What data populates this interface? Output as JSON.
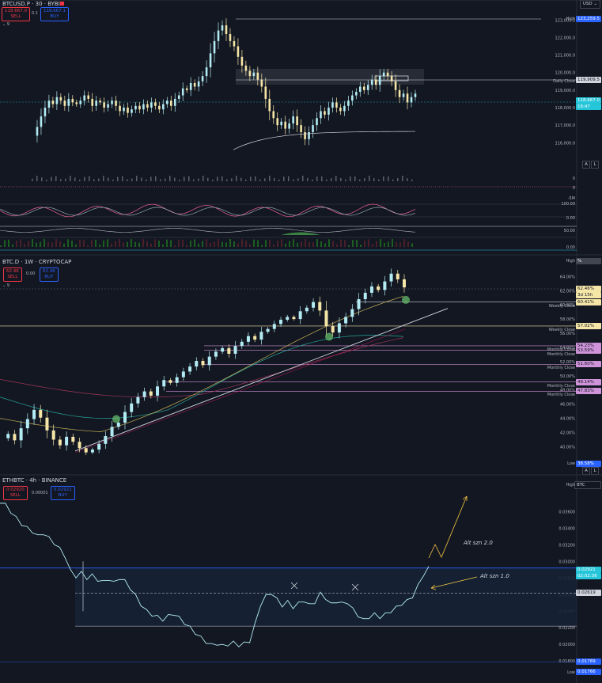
{
  "top_bar": {
    "currency_select": "USD"
  },
  "chart_data": [
    {
      "type": "candlestick",
      "title": "BTCUSD.P · 30 · BYBIT",
      "quote": {
        "sell": "118,667.0",
        "sell_label": "SELL",
        "spread": "0.1",
        "buy": "118,667.1",
        "buy_label": "BUY"
      },
      "indicator_count": "9",
      "y_ticks": [
        "123,000.0",
        "122,000.0",
        "121,000.0",
        "120,000.0",
        "119,000.0",
        "118,000.0",
        "117,000.0",
        "116,000.0"
      ],
      "ylim": [
        115200,
        123600
      ],
      "price_tags": [
        {
          "label": "High",
          "value": "123,259.5",
          "color": "#2962ff"
        },
        {
          "label": "Daily Close",
          "value": "119,909.5",
          "color": "#d1d4dc"
        },
        {
          "label": "",
          "value": "118,667.0",
          "sub": "16:47",
          "color": "#26c6da"
        }
      ],
      "scale_buttons": [
        "A",
        "L"
      ],
      "close_series": [
        116.4,
        116.9,
        117.5,
        118.0,
        118.4,
        118.2,
        118.6,
        118.4,
        118.1,
        118.5,
        118.3,
        118.2,
        118.4,
        118.7,
        118.5,
        118.1,
        118.4,
        118.3,
        118.0,
        118.2,
        118.4,
        118.1,
        117.8,
        118.0,
        117.7,
        117.9,
        118.1,
        117.9,
        118.2,
        118.0,
        118.3,
        118.1,
        117.9,
        118.2,
        118.4,
        118.1,
        118.5,
        118.7,
        119.1,
        119.0,
        119.4,
        119.2,
        119.5,
        119.8,
        120.3,
        121.1,
        121.8,
        122.4,
        122.7,
        122.2,
        121.8,
        121.5,
        120.9,
        120.4,
        120.1,
        119.8,
        120.0,
        119.6,
        119.2,
        118.5,
        117.8,
        117.4,
        117.0,
        117.2,
        116.8,
        117.1,
        117.5,
        117.0,
        116.6,
        116.2,
        116.6,
        117.0,
        117.4,
        117.8,
        117.6,
        118.0,
        118.3,
        118.0,
        117.8,
        118.1,
        118.4,
        118.7,
        118.9,
        119.2,
        119.0,
        119.3,
        119.6,
        119.3,
        119.8,
        120.0,
        119.8,
        119.5,
        119.0,
        118.6,
        118.8,
        118.3,
        118.6,
        118.8
      ],
      "ma_label": "200 MA"
    },
    {
      "type": "candlestick",
      "title": "BTC.D · 1W · CRYPTOCAP",
      "quote": {
        "sell": "62.46",
        "sell_label": "SELL",
        "spread": "0.00",
        "buy": "62.46",
        "buy_label": "BUY"
      },
      "indicator_count": "9",
      "y_ticks": [
        "64.00%",
        "62.00%",
        "60.00%",
        "58.00%",
        "56.00%",
        "54.00%",
        "52.00%",
        "50.00%",
        "48.00%",
        "46.00%",
        "44.00%",
        "42.00%",
        "40.00%"
      ],
      "ylim": [
        38.6,
        65.6
      ],
      "price_tags": [
        {
          "label": "High",
          "value": "%",
          "color": "#2962ff"
        },
        {
          "label": "",
          "value": "62.46%",
          "sub": "3d 15h",
          "color": "#f5e6a8"
        },
        {
          "label": "Weekly Close",
          "value": "60.41%",
          "color": "#f5e6a8"
        },
        {
          "label": "Weekly Close",
          "value": "57.02%",
          "color": "#f5e6a8"
        },
        {
          "label": "Monthly Close",
          "value": "54.23%",
          "color": "#ce93d8"
        },
        {
          "label": "Monthly Close",
          "value": "53.59%",
          "color": "#ce93d8"
        },
        {
          "label": "Monthly Close",
          "value": "51.60%",
          "color": "#ce93d8"
        },
        {
          "label": "Monthly Close",
          "value": "49.14%",
          "color": "#ce93d8"
        },
        {
          "label": "Monthly Close",
          "value": "47.83%",
          "color": "#ce93d8"
        },
        {
          "label": "Low",
          "value": "38.58%",
          "color": "#2962ff"
        }
      ],
      "scale_buttons": [
        "A",
        "L"
      ],
      "close_series": [
        41.2,
        41.8,
        40.9,
        42.6,
        43.9,
        45.2,
        44.1,
        42.3,
        41.0,
        40.2,
        41.4,
        40.7,
        39.8,
        39.2,
        39.6,
        40.4,
        41.5,
        42.8,
        43.4,
        44.9,
        46.1,
        47.0,
        47.8,
        47.2,
        48.5,
        49.4,
        49.0,
        49.8,
        50.6,
        51.3,
        52.1,
        51.5,
        52.7,
        53.4,
        53.9,
        53.1,
        54.2,
        54.8,
        55.6,
        55.1,
        56.2,
        56.6,
        57.3,
        57.9,
        58.3,
        58.0,
        59.1,
        59.6,
        60.4,
        59.2,
        57.0,
        56.1,
        57.4,
        58.3,
        59.4,
        60.8,
        61.7,
        62.6,
        62.1,
        63.3,
        64.4,
        63.6,
        62.46
      ],
      "ma_label": "moving averages"
    },
    {
      "type": "line",
      "title": "ETHBTC · 4h · BINANCE",
      "quote": {
        "sell": "0.02920",
        "sell_label": "SELL",
        "spread": "0.00001",
        "buy": "0.02921",
        "buy_label": "BUY"
      },
      "y_ticks": [
        "0.03600",
        "0.03400",
        "0.03200",
        "0.03000",
        "0.02800",
        "0.02600",
        "0.02400",
        "0.02200",
        "0.02000",
        "0.01800"
      ],
      "ylim": [
        0.01735,
        0.03775
      ],
      "price_tags": [
        {
          "label": "High",
          "value": "BTC",
          "color": "#2962ff"
        },
        {
          "label": "",
          "value": "0.02921",
          "sub": "02:02:36",
          "color": "#26c6da"
        },
        {
          "label": "",
          "value": "0.02619",
          "color": "#d1d4dc"
        },
        {
          "label": "",
          "value": "0.01789",
          "color": "#2962ff"
        },
        {
          "label": "Low",
          "value": "0.01766",
          "color": "#2962ff"
        }
      ],
      "annotations": [
        "Alt szn 2.0",
        "Alt szn 1.0"
      ],
      "close_series": [
        0.0372,
        0.0368,
        0.036,
        0.0352,
        0.0345,
        0.034,
        0.0336,
        0.033,
        0.0334,
        0.0328,
        0.0322,
        0.0315,
        0.0306,
        0.0288,
        0.0282,
        0.0286,
        0.028,
        0.0283,
        0.0278,
        0.0275,
        0.0279,
        0.0274,
        0.028,
        0.0276,
        0.0268,
        0.0258,
        0.0248,
        0.024,
        0.0236,
        0.0233,
        0.023,
        0.0234,
        0.0237,
        0.0232,
        0.0226,
        0.022,
        0.0214,
        0.0208,
        0.0203,
        0.0199,
        0.0201,
        0.0198,
        0.02,
        0.0202,
        0.0199,
        0.0201,
        0.0204,
        0.0224,
        0.0248,
        0.0258,
        0.0262,
        0.0254,
        0.0247,
        0.0251,
        0.0245,
        0.0249,
        0.0253,
        0.0247,
        0.0251,
        0.0261,
        0.0256,
        0.0248,
        0.0252,
        0.0249,
        0.0251,
        0.0242,
        0.0235,
        0.0229,
        0.0233,
        0.0236,
        0.0233,
        0.0236,
        0.024,
        0.0244,
        0.0249,
        0.0252,
        0.0258,
        0.027,
        0.0284,
        0.0292
      ]
    }
  ]
}
